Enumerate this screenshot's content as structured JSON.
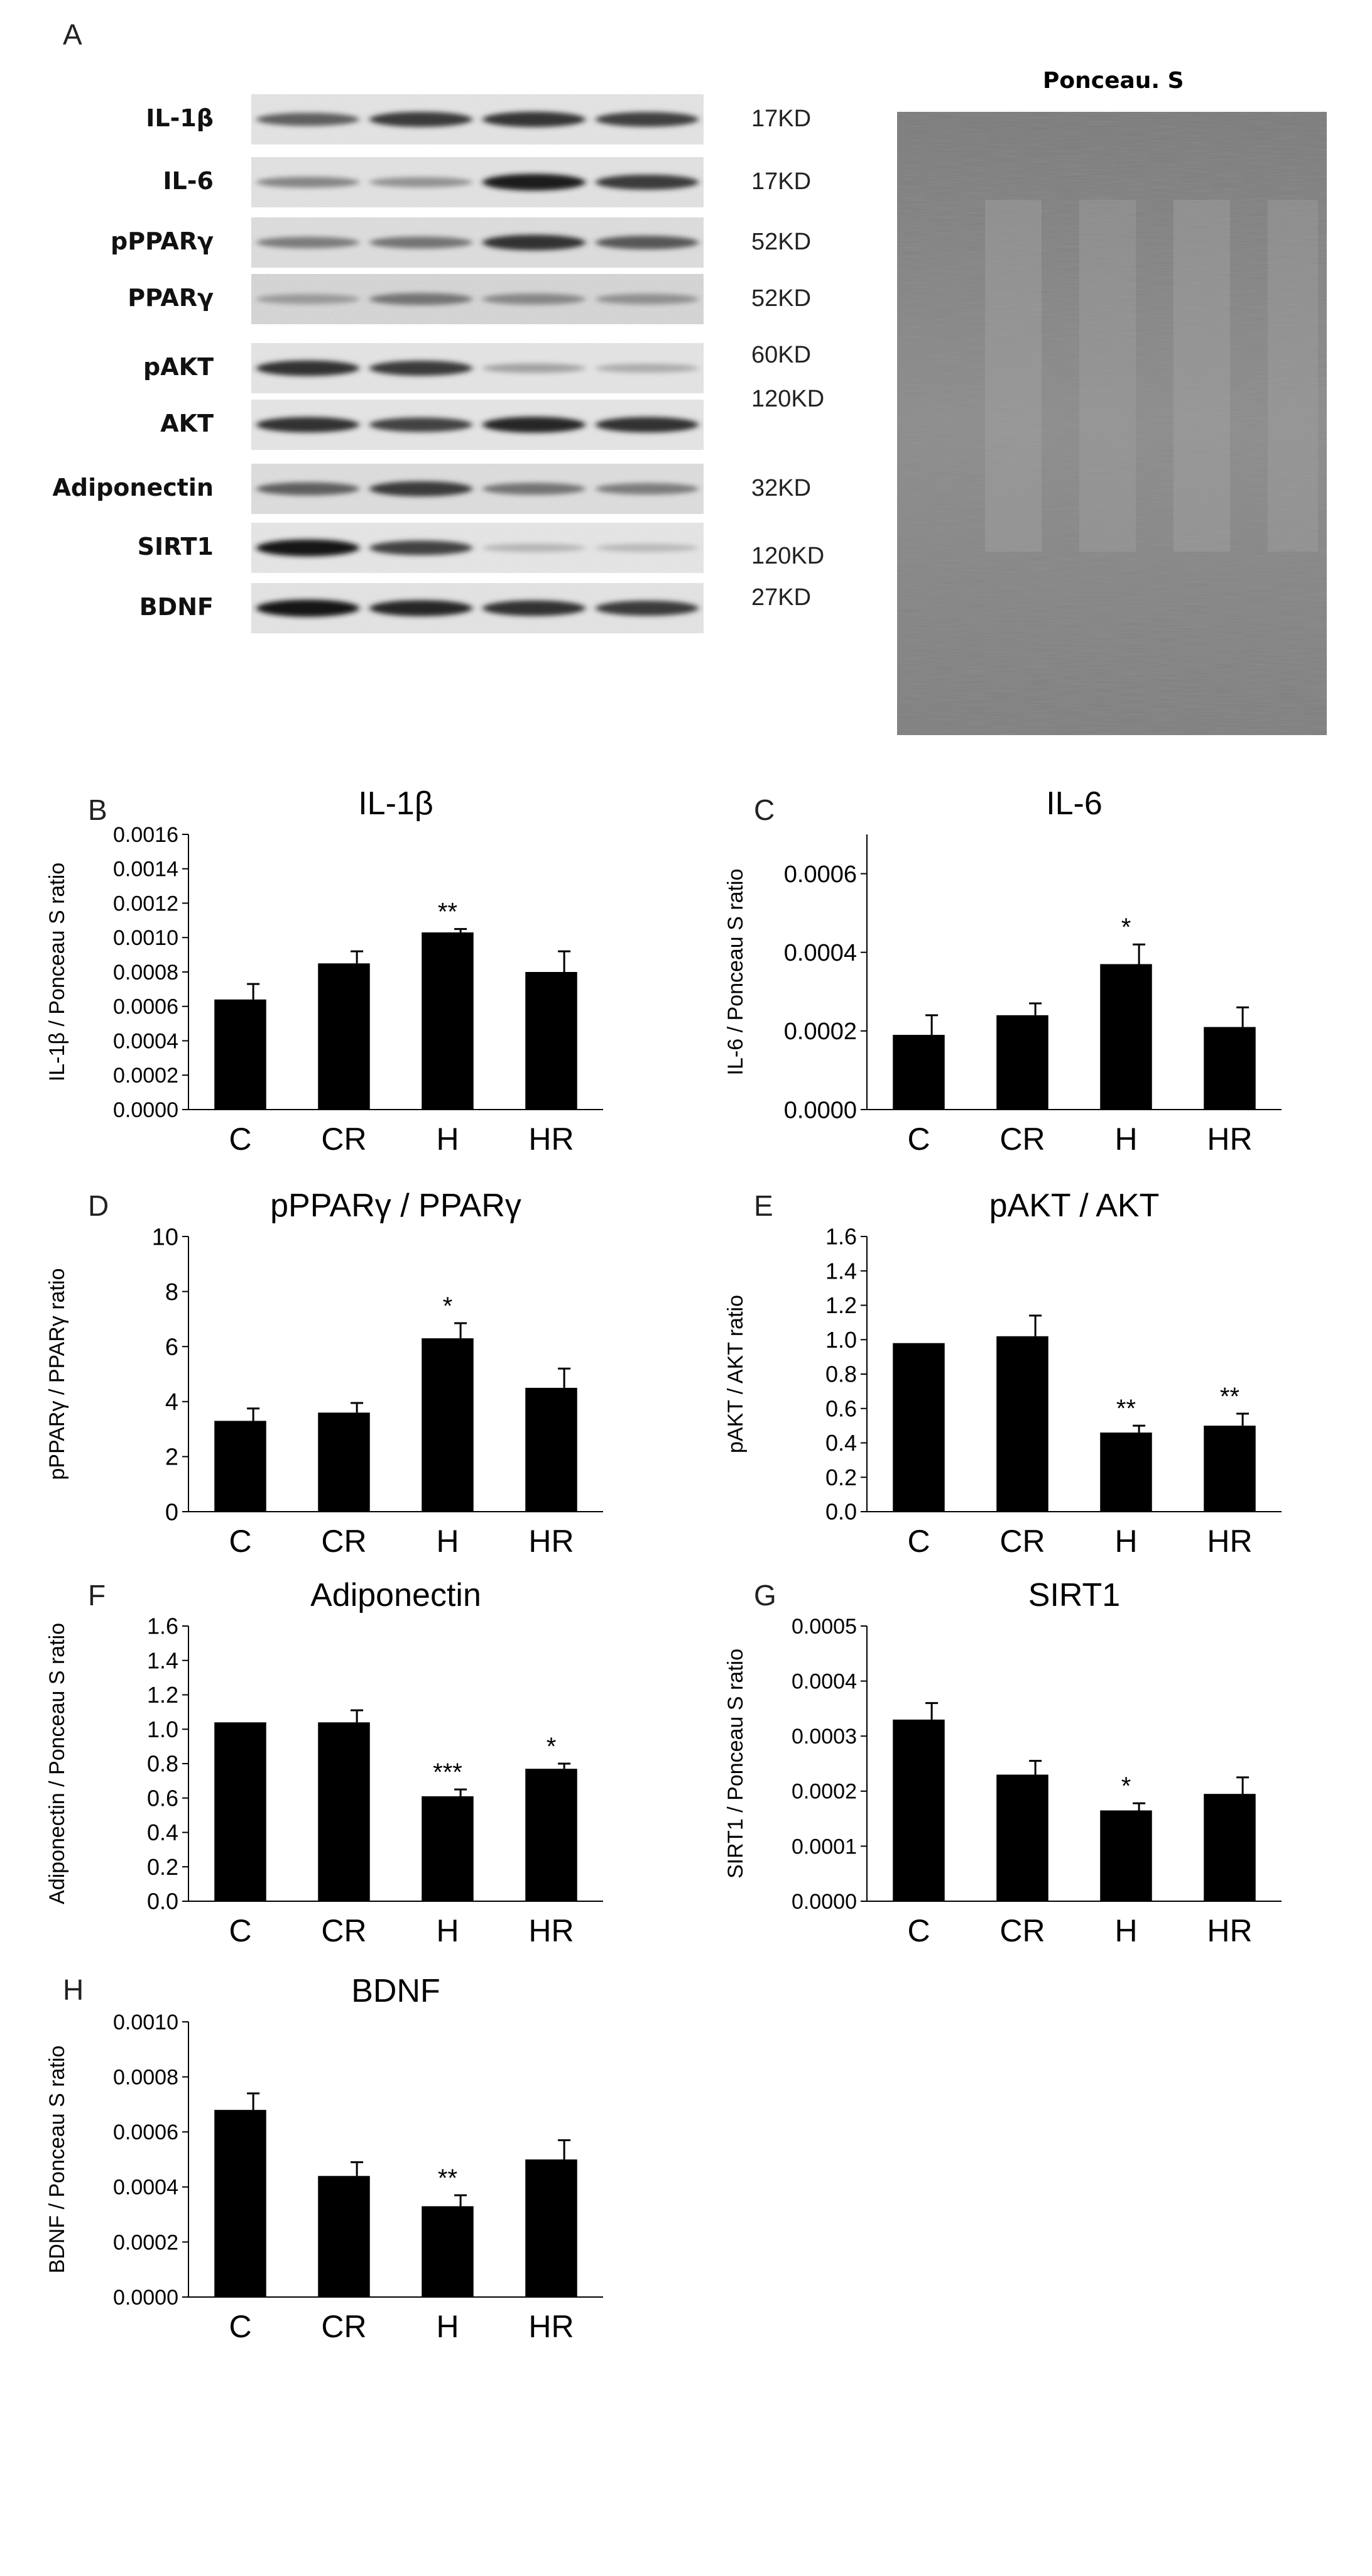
{
  "figure": {
    "panel_a_letter": "A",
    "ponceau_title": "Ponceau. S",
    "blots": [
      {
        "protein": "IL-1β",
        "size": "17KD",
        "intensities": [
          0.55,
          0.75,
          0.78,
          0.72
        ],
        "noise": 0.15
      },
      {
        "protein": "IL-6",
        "size": "17KD",
        "intensities": [
          0.35,
          0.28,
          0.9,
          0.75
        ],
        "noise": 0.2
      },
      {
        "protein": "pPPARγ",
        "size": "52KD",
        "intensities": [
          0.4,
          0.45,
          0.8,
          0.6
        ],
        "noise": 0.35
      },
      {
        "protein": "PPARγ",
        "size": "52KD",
        "intensities": [
          0.25,
          0.45,
          0.35,
          0.3
        ],
        "noise": 0.6
      },
      {
        "protein": "pAKT",
        "size": "60KD",
        "intensities": [
          0.8,
          0.75,
          0.2,
          0.15
        ],
        "noise": 0.12
      },
      {
        "protein": "AKT",
        "size": "120KD",
        "intensities": [
          0.8,
          0.7,
          0.85,
          0.8
        ],
        "noise": 0.1
      },
      {
        "protein": "Adiponectin",
        "size": "32KD",
        "intensities": [
          0.55,
          0.75,
          0.45,
          0.4
        ],
        "noise": 0.35
      },
      {
        "protein": "SIRT1",
        "size": "120KD",
        "intensities": [
          0.92,
          0.7,
          0.1,
          0.08
        ],
        "noise": 0.08
      },
      {
        "protein": "BDNF",
        "size": "27KD",
        "intensities": [
          0.95,
          0.85,
          0.8,
          0.75
        ],
        "noise": 0.15
      }
    ]
  },
  "chart_data": [
    {
      "panel": "B",
      "type": "bar",
      "title": "IL-1β",
      "ylabel": "IL-1β / Ponceau S ratio",
      "categories": [
        "C",
        "CR",
        "H",
        "HR"
      ],
      "values": [
        0.00064,
        0.00085,
        0.00103,
        0.0008
      ],
      "errors": [
        9e-05,
        7e-05,
        2e-05,
        0.00012
      ],
      "significance": [
        "",
        "",
        "**",
        ""
      ],
      "ylim": [
        0,
        0.0016
      ],
      "yticks": [
        "0.0000",
        "0.0002",
        "0.0004",
        "0.0006",
        "0.0008",
        "0.0010",
        "0.0012",
        "0.0014",
        "0.0016"
      ],
      "tick_size": 34,
      "title_size": 52
    },
    {
      "panel": "C",
      "type": "bar",
      "title": "IL-6",
      "ylabel": "IL-6 / Ponceau S ratio",
      "categories": [
        "C",
        "CR",
        "H",
        "HR"
      ],
      "values": [
        0.00019,
        0.00024,
        0.00037,
        0.00021
      ],
      "errors": [
        5e-05,
        3e-05,
        5e-05,
        5e-05
      ],
      "significance": [
        "",
        "",
        "*",
        ""
      ],
      "ylim": [
        0,
        0.0007
      ],
      "yticks": [
        "0.0000",
        "0.0002",
        "0.0004",
        "0.0006"
      ],
      "tick_size": 38,
      "title_size": 52
    },
    {
      "panel": "D",
      "type": "bar",
      "title": "pPPARγ / PPARγ",
      "ylabel": "pPPARγ / PPARγ ratio",
      "categories": [
        "C",
        "CR",
        "H",
        "HR"
      ],
      "values": [
        3.3,
        3.6,
        6.3,
        4.5
      ],
      "errors": [
        0.45,
        0.35,
        0.55,
        0.7
      ],
      "significance": [
        "",
        "",
        "*",
        ""
      ],
      "ylim": [
        0,
        10
      ],
      "yticks": [
        "0",
        "2",
        "4",
        "6",
        "8",
        "10"
      ],
      "tick_size": 38,
      "title_size": 52
    },
    {
      "panel": "E",
      "type": "bar",
      "title": "pAKT / AKT",
      "ylabel": "pAKT / AKT ratio",
      "categories": [
        "C",
        "CR",
        "H",
        "HR"
      ],
      "values": [
        0.98,
        1.02,
        0.46,
        0.5
      ],
      "errors": [
        0.0,
        0.12,
        0.04,
        0.07
      ],
      "significance": [
        "",
        "",
        "**",
        "**"
      ],
      "ylim": [
        0,
        1.6
      ],
      "yticks": [
        "0.0",
        "0.2",
        "0.4",
        "0.6",
        "0.8",
        "1.0",
        "1.2",
        "1.4",
        "1.6"
      ],
      "tick_size": 36,
      "title_size": 52
    },
    {
      "panel": "F",
      "type": "bar",
      "title": "Adiponectin",
      "ylabel": "Adiponectin / Ponceau S ratio",
      "categories": [
        "C",
        "CR",
        "H",
        "HR"
      ],
      "values": [
        1.04,
        1.04,
        0.61,
        0.77
      ],
      "errors": [
        0.0,
        0.07,
        0.04,
        0.03
      ],
      "significance": [
        "",
        "",
        "***",
        "*"
      ],
      "ylim": [
        0,
        1.6
      ],
      "yticks": [
        "0.0",
        "0.2",
        "0.4",
        "0.6",
        "0.8",
        "1.0",
        "1.2",
        "1.4",
        "1.6"
      ],
      "tick_size": 36,
      "title_size": 52
    },
    {
      "panel": "G",
      "type": "bar",
      "title": "SIRT1",
      "ylabel": "SIRT1 / Ponceau S ratio",
      "categories": [
        "C",
        "CR",
        "H",
        "HR"
      ],
      "values": [
        0.00033,
        0.00023,
        0.000165,
        0.000195
      ],
      "errors": [
        3e-05,
        2.5e-05,
        1.3e-05,
        3e-05
      ],
      "significance": [
        "",
        "",
        "*",
        ""
      ],
      "ylim": [
        0,
        0.0005
      ],
      "yticks": [
        "0.0000",
        "0.0001",
        "0.0002",
        "0.0003",
        "0.0004",
        "0.0005"
      ],
      "tick_size": 34,
      "title_size": 52
    },
    {
      "panel": "H",
      "type": "bar",
      "title": "BDNF",
      "ylabel": "BDNF / Ponceau S ratio",
      "categories": [
        "C",
        "CR",
        "H",
        "HR"
      ],
      "values": [
        0.00068,
        0.00044,
        0.00033,
        0.0005
      ],
      "errors": [
        6e-05,
        5e-05,
        4e-05,
        7e-05
      ],
      "significance": [
        "",
        "",
        "**",
        ""
      ],
      "ylim": [
        0,
        0.001
      ],
      "yticks": [
        "0.0000",
        "0.0002",
        "0.0004",
        "0.0006",
        "0.0008",
        "0.0010"
      ],
      "tick_size": 34,
      "title_size": 52
    }
  ]
}
